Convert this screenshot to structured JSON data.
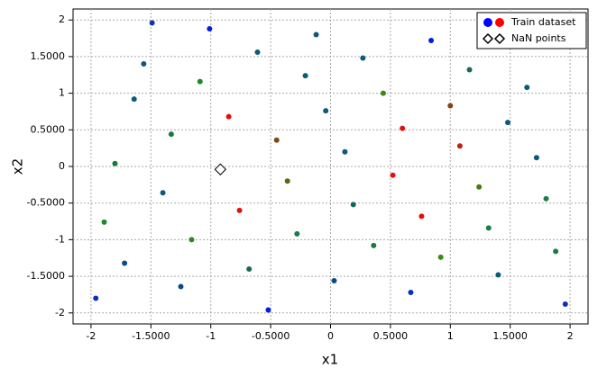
{
  "chart_data": {
    "type": "scatter",
    "x_label": "x1",
    "y_label": "x2",
    "xlim": [
      -2.15,
      2.15
    ],
    "ylim": [
      -2.15,
      2.15
    ],
    "xticks": [
      -2,
      {
        "value": -1.5,
        "label": "-1.5000"
      },
      -1,
      {
        "value": -0.5,
        "label": "-0.5000"
      },
      0,
      {
        "value": 0.5,
        "label": "0.5000"
      },
      1,
      {
        "value": 1.5,
        "label": "1.5000"
      },
      2
    ],
    "yticks": [
      -2,
      {
        "value": -1.5,
        "label": "-1.5000"
      },
      -1,
      {
        "value": -0.5,
        "label": "-0.5000"
      },
      0,
      {
        "value": 0.5,
        "label": "0.5000"
      },
      1,
      {
        "value": 1.5,
        "label": "1.5000"
      },
      2
    ],
    "grid": true,
    "legend": "upper right",
    "series": [
      {
        "name": "Train dataset",
        "marker": "circle",
        "legend_colors": [
          "#0000ff",
          "#ff0000"
        ],
        "x": [
          -1.49,
          -1.01,
          -0.12,
          0.84,
          -1.56,
          -0.61,
          0.27,
          1.16,
          -1.64,
          -1.09,
          -0.21,
          0.44,
          1.64,
          -0.85,
          -0.04,
          1.0,
          -1.33,
          -0.45,
          0.6,
          1.48,
          -1.8,
          0.12,
          1.08,
          1.72,
          -1.4,
          -0.36,
          0.52,
          1.24,
          -1.89,
          -0.76,
          0.19,
          0.76,
          1.8,
          -1.16,
          -0.28,
          0.36,
          1.32,
          -1.72,
          -0.68,
          0.92,
          1.88,
          -1.25,
          0.03,
          0.67,
          1.4,
          -1.96,
          -0.52,
          1.96
        ],
        "y": [
          1.96,
          1.88,
          1.8,
          1.72,
          1.4,
          1.56,
          1.48,
          1.32,
          0.92,
          1.16,
          1.24,
          1.0,
          1.08,
          0.68,
          0.76,
          0.83,
          0.44,
          0.36,
          0.52,
          0.6,
          0.04,
          0.2,
          0.28,
          0.12,
          -0.36,
          -0.2,
          -0.12,
          -0.28,
          -0.76,
          -0.6,
          -0.52,
          -0.68,
          -0.44,
          -1.0,
          -0.92,
          -1.08,
          -0.84,
          -1.32,
          -1.4,
          -1.24,
          -1.16,
          -1.64,
          -1.56,
          -1.72,
          -1.48,
          -1.8,
          -1.96,
          -1.88
        ],
        "colors": [
          "#0a3aa8",
          "#0020e0",
          "#0a5a78",
          "#0020e0",
          "#0a5a78",
          "#0a5a78",
          "#0a5a78",
          "#1a6a50",
          "#0a5a78",
          "#1a8a2a",
          "#0a5a78",
          "#3a8a10",
          "#0a5a78",
          "#e01010",
          "#0a5a78",
          "#8a4010",
          "#1a7a3a",
          "#7a4a10",
          "#e01010",
          "#0a5a78",
          "#1a7a3a",
          "#0a5a78",
          "#c02010",
          "#0a5a78",
          "#0a5a78",
          "#5a6a10",
          "#e01010",
          "#4a7a10",
          "#1a8a2a",
          "#e01010",
          "#0a6a5a",
          "#e01010",
          "#1a7a4a",
          "#2a8a1a",
          "#1a7a4a",
          "#1a7a3a",
          "#1a7a4a",
          "#0a4a88",
          "#1a6a4a",
          "#3a8a10",
          "#1a7a4a",
          "#0a4a88",
          "#0a4a88",
          "#0a30c0",
          "#0a5a78",
          "#0a30c0",
          "#0020e0",
          "#0a30c0"
        ]
      },
      {
        "name": "NaN points",
        "marker": "diamond",
        "color": "#000000",
        "x": [
          -0.92
        ],
        "y": [
          -0.04
        ]
      }
    ]
  }
}
